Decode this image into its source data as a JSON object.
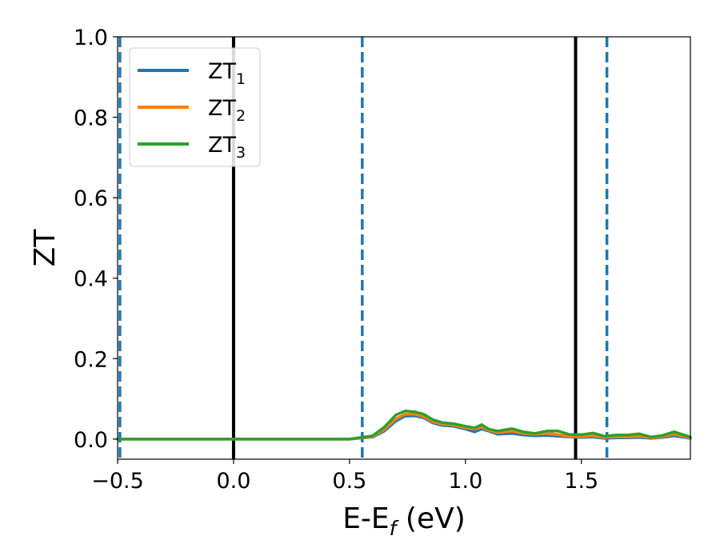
{
  "chart_data": {
    "type": "line",
    "xlabel": {
      "main": "E-E",
      "sub": "f",
      "rest": " (eV)"
    },
    "ylabel": "ZT",
    "xlim": [
      -0.5,
      1.97
    ],
    "ylim": [
      -0.05,
      1.0
    ],
    "x_ticks": [
      {
        "value": -0.5,
        "label": "−0.5"
      },
      {
        "value": 0.0,
        "label": "0.0"
      },
      {
        "value": 0.5,
        "label": "0.5"
      },
      {
        "value": 1.0,
        "label": "1.0"
      },
      {
        "value": 1.5,
        "label": "1.5"
      }
    ],
    "y_ticks": [
      {
        "value": 0.0,
        "label": "0.0"
      },
      {
        "value": 0.2,
        "label": "0.2"
      },
      {
        "value": 0.4,
        "label": "0.4"
      },
      {
        "value": 0.6,
        "label": "0.6"
      },
      {
        "value": 0.8,
        "label": "0.8"
      },
      {
        "value": 1.0,
        "label": "1.0"
      }
    ],
    "grid": false,
    "legend_position": "top-left",
    "vertical_lines": [
      {
        "x": -0.49,
        "style": "dashed",
        "color": "#1f77b4"
      },
      {
        "x": 0.0,
        "style": "solid",
        "color": "#000000"
      },
      {
        "x": 0.555,
        "style": "dashed",
        "color": "#1f77b4"
      },
      {
        "x": 1.475,
        "style": "solid",
        "color": "#000000"
      },
      {
        "x": 1.61,
        "style": "dashed",
        "color": "#1f77b4"
      }
    ],
    "x": [
      -0.5,
      -0.2,
      0.2,
      0.5,
      0.6,
      0.65,
      0.7,
      0.74,
      0.78,
      0.82,
      0.86,
      0.9,
      0.95,
      1.0,
      1.04,
      1.07,
      1.1,
      1.14,
      1.2,
      1.25,
      1.3,
      1.35,
      1.4,
      1.45,
      1.5,
      1.55,
      1.6,
      1.65,
      1.7,
      1.75,
      1.8,
      1.85,
      1.9,
      1.97
    ],
    "series": [
      {
        "name": "ZT",
        "subscript": "1",
        "color": "#1f77b4",
        "values": [
          0.0,
          0.0,
          0.0,
          0.0,
          0.005,
          0.02,
          0.045,
          0.057,
          0.058,
          0.053,
          0.04,
          0.034,
          0.032,
          0.025,
          0.018,
          0.025,
          0.02,
          0.012,
          0.014,
          0.01,
          0.008,
          0.009,
          0.007,
          0.005,
          0.004,
          0.005,
          0.002,
          0.003,
          0.003,
          0.004,
          0.002,
          0.004,
          0.008,
          0.002
        ]
      },
      {
        "name": "ZT",
        "subscript": "2",
        "color": "#ff7f0e",
        "values": [
          0.0,
          0.0,
          0.0,
          0.0,
          0.006,
          0.024,
          0.05,
          0.062,
          0.062,
          0.056,
          0.043,
          0.037,
          0.035,
          0.028,
          0.025,
          0.03,
          0.022,
          0.016,
          0.02,
          0.014,
          0.012,
          0.014,
          0.011,
          0.006,
          0.006,
          0.008,
          0.004,
          0.006,
          0.005,
          0.007,
          0.003,
          0.006,
          0.012,
          0.003
        ]
      },
      {
        "name": "ZT",
        "subscript": "3",
        "color": "#2ca02c",
        "values": [
          0.0,
          0.0,
          0.0,
          0.0,
          0.008,
          0.03,
          0.06,
          0.07,
          0.068,
          0.062,
          0.048,
          0.041,
          0.038,
          0.032,
          0.028,
          0.036,
          0.025,
          0.02,
          0.026,
          0.018,
          0.014,
          0.02,
          0.02,
          0.011,
          0.011,
          0.015,
          0.007,
          0.01,
          0.01,
          0.013,
          0.005,
          0.009,
          0.018,
          0.005
        ]
      }
    ]
  }
}
